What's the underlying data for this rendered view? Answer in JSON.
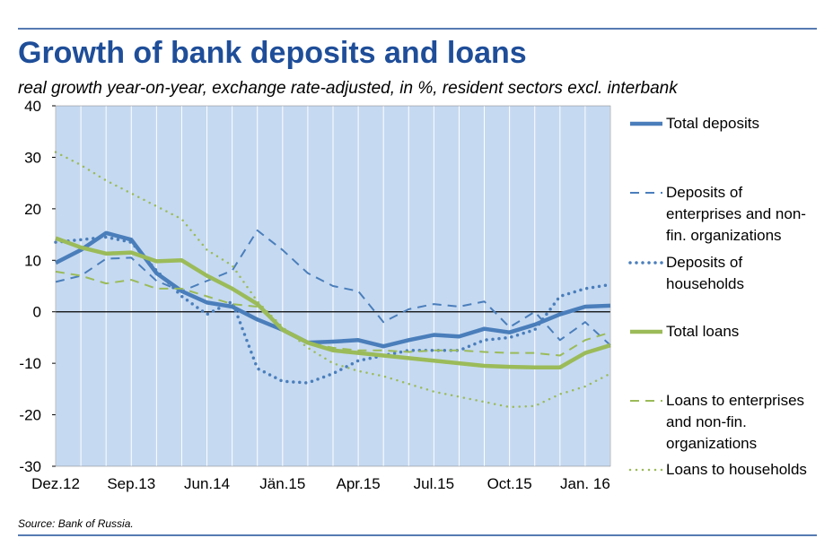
{
  "chart_data": {
    "type": "line",
    "title": "Growth of bank deposits and loans",
    "subtitle": "real growth year-on-year, exchange rate-adjusted, in %, resident sectors excl. interbank",
    "source": "Source: Bank of Russia.",
    "categories": [
      "Dez.12",
      null,
      null,
      "Sep.13",
      null,
      null,
      "Jun.14",
      null,
      null,
      "Jän.15",
      null,
      null,
      "Apr.15",
      null,
      null,
      "Jul.15",
      null,
      null,
      "Oct.15",
      null,
      null,
      "Jan. 16",
      null
    ],
    "ylim": [
      -30,
      40
    ],
    "yticks": [
      -30,
      -20,
      -10,
      0,
      10,
      20,
      30,
      40
    ],
    "background": "#c5d9f1",
    "series": [
      {
        "name": "Total deposits",
        "color": "#4a7ebb",
        "style": "solid",
        "values": [
          9.5,
          12,
          15.3,
          14,
          7.5,
          4,
          1.8,
          1,
          -1.5,
          -3.5,
          -6,
          -5.8,
          -5.5,
          -6.7,
          -5.5,
          -4.5,
          -4.8,
          -3.3,
          -4,
          -2.5,
          -0.5,
          1,
          1.2
        ]
      },
      {
        "name": "Deposits of enterprises and non-fin. organizations",
        "color": "#4a7ebb",
        "style": "dashed",
        "values": [
          5.8,
          7,
          10.3,
          10.5,
          6,
          4,
          6,
          8,
          15.8,
          12,
          7.5,
          5,
          4,
          -2,
          0.5,
          1.5,
          1,
          2,
          -3,
          0,
          -5.5,
          -2,
          -6.5
        ]
      },
      {
        "name": "Deposits of households",
        "color": "#4a7ebb",
        "style": "dotted",
        "values": [
          13.5,
          14,
          14.5,
          13.5,
          8,
          3,
          -0.5,
          2,
          -11,
          -13.5,
          -13.8,
          -12,
          -9.5,
          -8.5,
          -7.5,
          -7.5,
          -7.5,
          -5.5,
          -5,
          -3.5,
          3,
          4.5,
          5.3
        ]
      },
      {
        "name": "Total loans",
        "color": "#9bbb59",
        "style": "solid",
        "values": [
          14.3,
          12.5,
          11.3,
          11.5,
          9.8,
          10,
          7,
          4.5,
          1.5,
          -3.5,
          -6,
          -7.5,
          -8,
          -8.5,
          -9,
          -9.5,
          -10,
          -10.5,
          -10.7,
          -10.8,
          -10.8,
          -8,
          -6.5
        ]
      },
      {
        "name": "Loans to enterprises and non-fin. organizations",
        "color": "#9bbb59",
        "style": "dashed",
        "values": [
          7.8,
          7,
          5.5,
          6.2,
          4.5,
          4.5,
          3,
          1.5,
          1,
          -3.5,
          -6,
          -7,
          -7.5,
          -7.5,
          -7.8,
          -7.5,
          -7.5,
          -7.8,
          -8,
          -8,
          -8.5,
          -5.5,
          -4
        ]
      },
      {
        "name": "Loans to households",
        "color": "#9bbb59",
        "style": "dotted",
        "values": [
          31,
          28.5,
          25.5,
          23,
          20.5,
          18,
          12,
          9,
          2,
          -3,
          -7,
          -10,
          -11.5,
          -12.5,
          -14,
          -15.5,
          -16.5,
          -17.5,
          -18.5,
          -18.3,
          -16,
          -14.5,
          -12
        ]
      }
    ]
  }
}
